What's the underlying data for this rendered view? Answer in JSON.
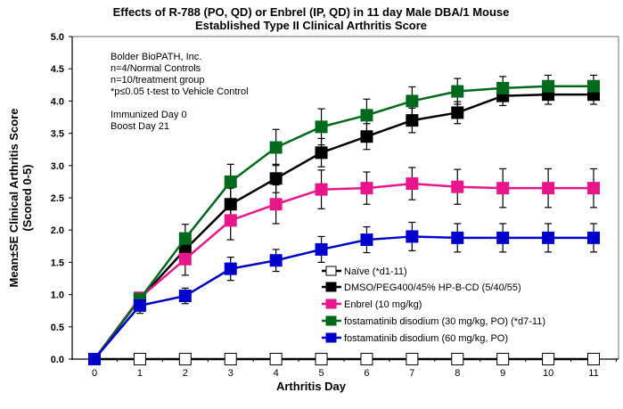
{
  "chart_data": {
    "type": "line",
    "title": "Effects of R-788 (PO, QD) or Enbrel (IP, QD) in 11 day Male DBA/1 Mouse",
    "subtitle": "Established Type II Clinical Arthritis Score",
    "xlabel": "Arthritis Day",
    "ylabel": "Mean±SE Clinical Arthritis Score",
    "ylabel2": "(Scored 0-5)",
    "xlim": [
      -0.9,
      11.5
    ],
    "ylim": [
      0,
      5
    ],
    "x": [
      0,
      1,
      2,
      3,
      4,
      5,
      6,
      7,
      8,
      9,
      10,
      11
    ],
    "xticks": [
      "0",
      "1",
      "2",
      "3",
      "4",
      "5",
      "6",
      "7",
      "8",
      "9",
      "10",
      "11"
    ],
    "yticks": [
      "0.0",
      "0.5",
      "1.0",
      "1.5",
      "2.0",
      "2.5",
      "3.0",
      "3.5",
      "4.0",
      "4.5",
      "5.0"
    ],
    "grid": false,
    "legend_position": "bottom-right",
    "annotations": [
      "Bolder BioPATH, Inc.",
      "n=4/Normal Controls",
      "n=10/treatment group",
      "*p≤0.05 t-test to Vehicle Control",
      "",
      "Immunized Day 0",
      "Boost Day 21"
    ],
    "series": [
      {
        "name": "Naïve (*d1-11)",
        "color": "#000000",
        "marker_fill": "#ffffff",
        "values": [
          0,
          0,
          0,
          0,
          0,
          0,
          0,
          0,
          0,
          0,
          0,
          0
        ],
        "errors": [
          0,
          0,
          0,
          0,
          0,
          0,
          0,
          0,
          0,
          0,
          0,
          0
        ]
      },
      {
        "name": "DMSO/PEG400/45% HP-B-CD (5/40/55)",
        "color": "#000000",
        "marker_fill": "#000000",
        "values": [
          0,
          0.93,
          1.7,
          2.4,
          2.8,
          3.2,
          3.45,
          3.7,
          3.82,
          4.08,
          4.1,
          4.1
        ],
        "errors": [
          0,
          0.08,
          0.2,
          0.25,
          0.22,
          0.22,
          0.2,
          0.19,
          0.17,
          0.15,
          0.15,
          0.15
        ]
      },
      {
        "name": "Enbrel (10 mg/kg)",
        "color": "#e8168a",
        "marker_fill": "#e8168a",
        "values": [
          0,
          0.95,
          1.55,
          2.15,
          2.4,
          2.63,
          2.65,
          2.72,
          2.67,
          2.65,
          2.65,
          2.65
        ],
        "errors": [
          0,
          0.08,
          0.25,
          0.3,
          0.3,
          0.3,
          0.25,
          0.25,
          0.27,
          0.3,
          0.3,
          0.3
        ]
      },
      {
        "name": "fostamatinib disodium (30 mg/kg, PO) (*d7-11)",
        "color": "#006a1c",
        "marker_fill": "#006a1c",
        "values": [
          0,
          0.93,
          1.87,
          2.75,
          3.28,
          3.6,
          3.78,
          4.0,
          4.15,
          4.2,
          4.23,
          4.23
        ],
        "errors": [
          0,
          0.08,
          0.22,
          0.27,
          0.28,
          0.28,
          0.25,
          0.22,
          0.2,
          0.18,
          0.17,
          0.17
        ]
      },
      {
        "name": "fostamatinib disodium (60 mg/kg, PO)",
        "color": "#0000cc",
        "marker_fill": "#0000cc",
        "values": [
          0,
          0.83,
          0.98,
          1.4,
          1.53,
          1.7,
          1.85,
          1.9,
          1.88,
          1.88,
          1.88,
          1.88
        ],
        "errors": [
          0,
          0.12,
          0.12,
          0.18,
          0.17,
          0.2,
          0.2,
          0.22,
          0.22,
          0.22,
          0.22,
          0.22
        ]
      }
    ]
  }
}
